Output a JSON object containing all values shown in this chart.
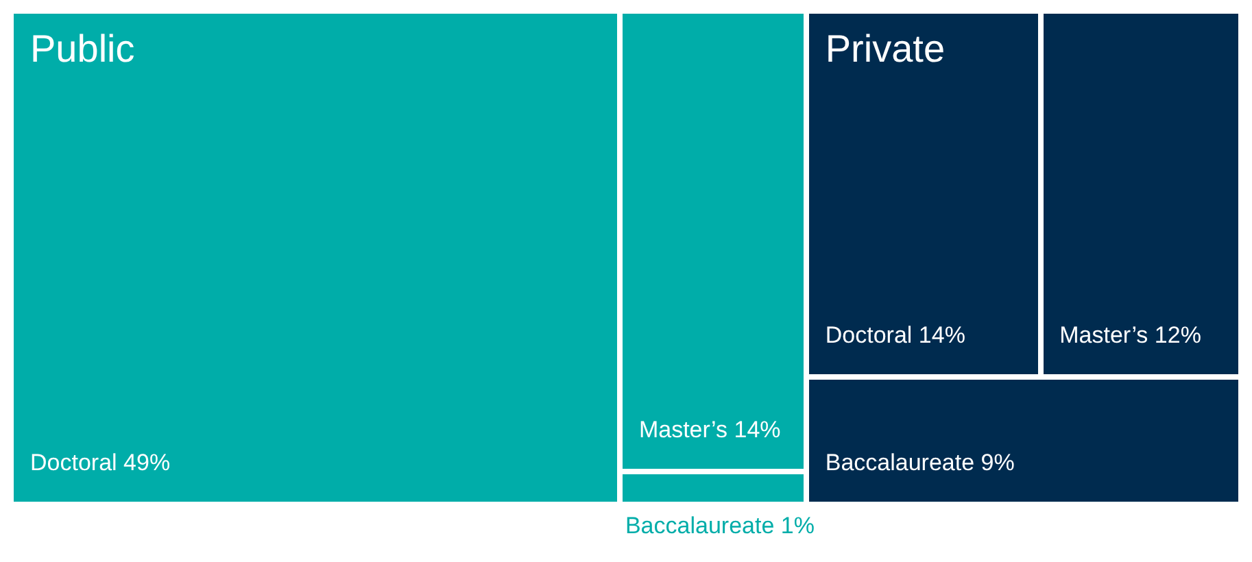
{
  "chart_data": {
    "type": "other",
    "categories": [
      "Doctoral",
      "Master’s",
      "Baccalaureate"
    ],
    "series": [
      {
        "name": "Public",
        "color": "#00ada9",
        "values": [
          49,
          14,
          1
        ],
        "value_labels": [
          "49%",
          "14%",
          "1%"
        ]
      },
      {
        "name": "Private",
        "color": "#002b4f",
        "values": [
          14,
          12,
          9
        ],
        "value_labels": [
          "14%",
          "12%",
          "9%"
        ]
      }
    ]
  }
}
